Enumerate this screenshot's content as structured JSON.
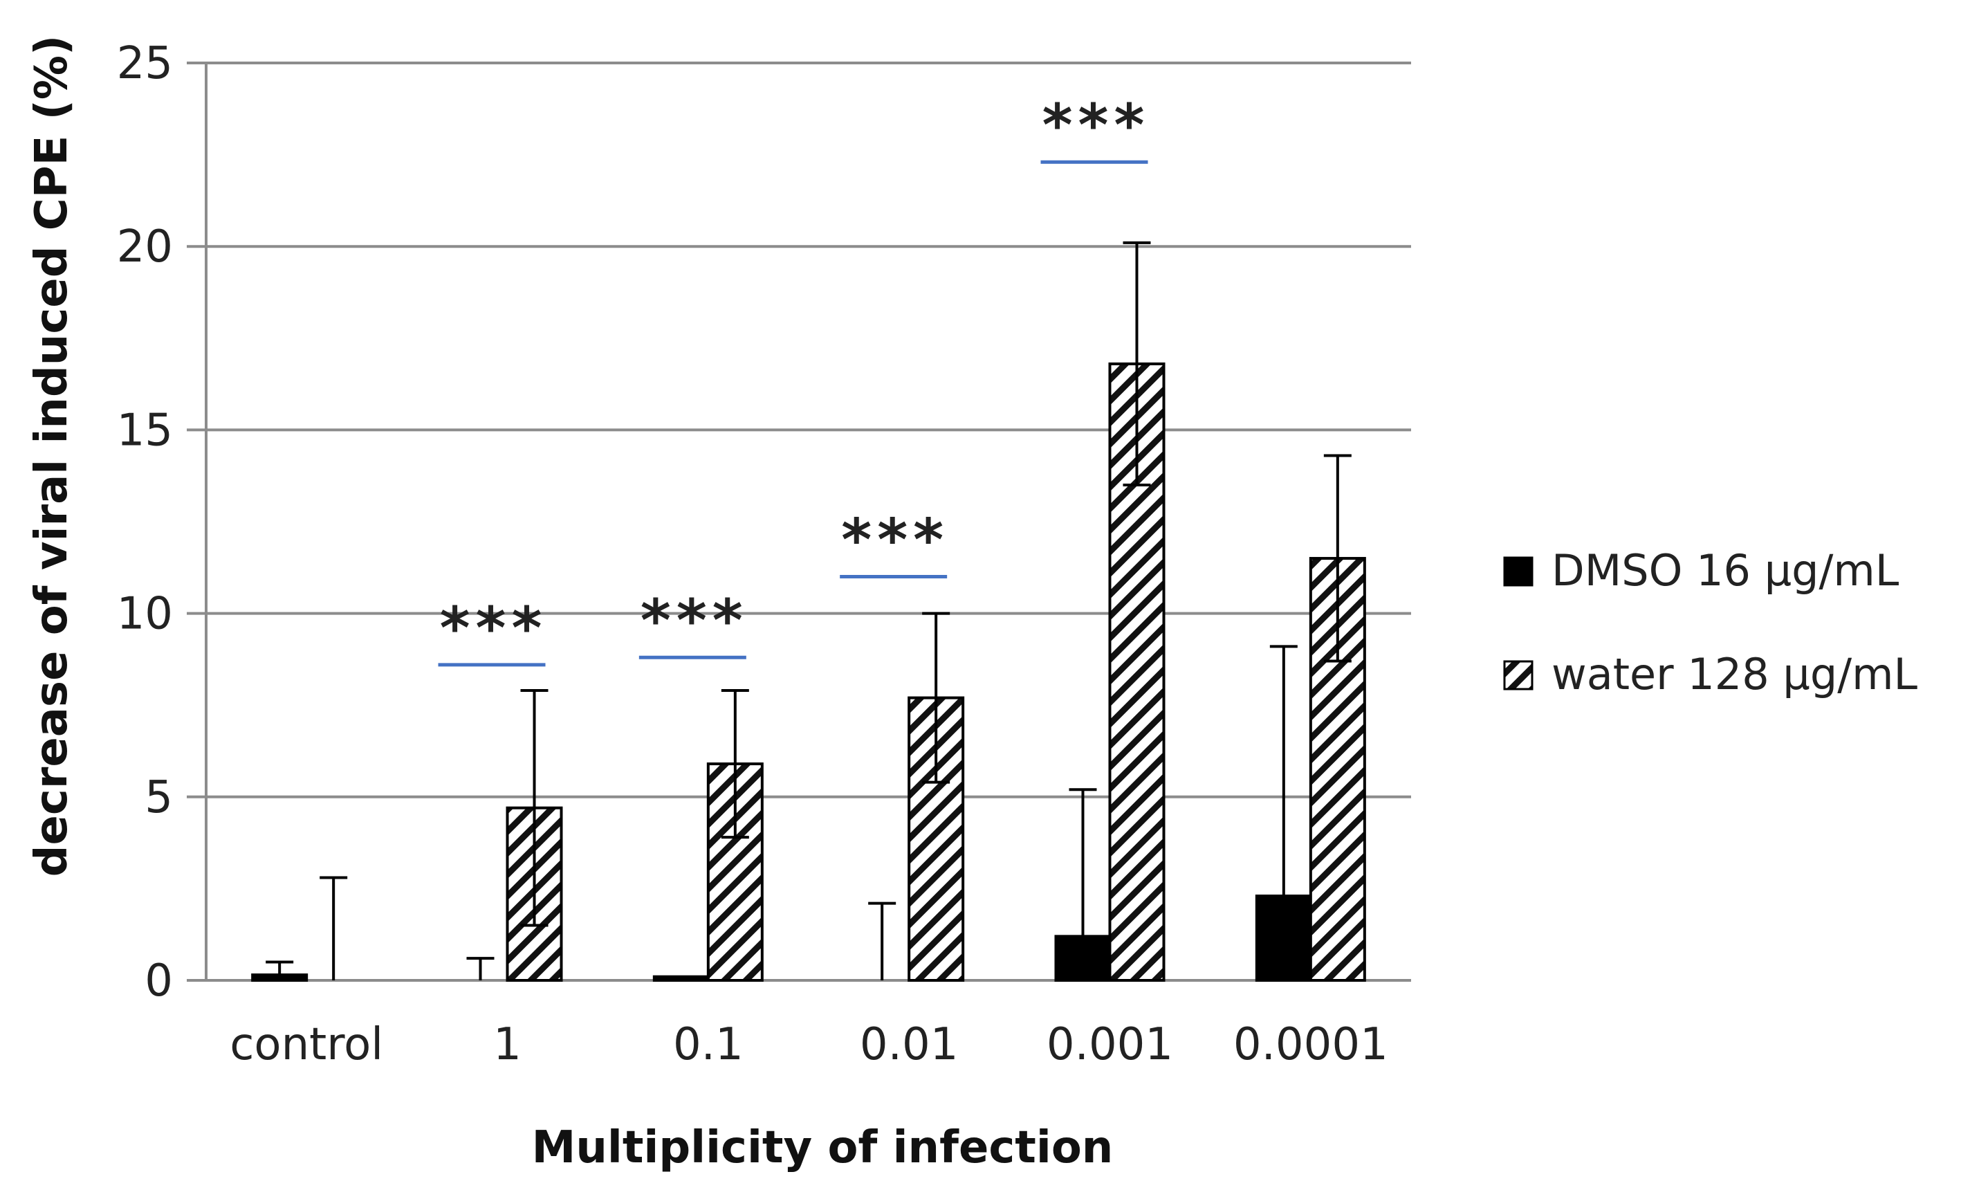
{
  "chart_data": {
    "type": "bar",
    "title": "",
    "xlabel": "Multiplicity of infection",
    "ylabel": "decrease of viral induced CPE (%)",
    "ylim": [
      0,
      25
    ],
    "yticks": [
      0,
      5,
      10,
      15,
      20,
      25
    ],
    "grid": true,
    "legend_position": "right",
    "categories": [
      "control",
      "1",
      "0.1",
      "0.01",
      "0.001",
      "0.0001"
    ],
    "series": [
      {
        "name": "DMSO 16 μg/mL",
        "fill": "solid",
        "color": "#000000",
        "values": [
          0.15,
          0.0,
          0.1,
          0.0,
          1.2,
          2.3
        ],
        "error": [
          0.35,
          0.6,
          0.0,
          2.1,
          4.0,
          6.8
        ]
      },
      {
        "name": "water 128 μg/mL",
        "fill": "hatched",
        "color": "#000000",
        "values": [
          0.0,
          4.7,
          5.9,
          7.7,
          16.8,
          11.5
        ],
        "error": [
          2.8,
          3.2,
          2.0,
          2.3,
          3.3,
          2.8
        ]
      }
    ],
    "significance": [
      {
        "category": "1",
        "label": "***",
        "line_value": 8.6,
        "line_color": "#4472C4"
      },
      {
        "category": "0.1",
        "label": "***",
        "line_value": 8.8,
        "line_color": "#4472C4"
      },
      {
        "category": "0.01",
        "label": "***",
        "line_value": 11.0,
        "line_color": "#4472C4"
      },
      {
        "category": "0.001",
        "label": "***",
        "line_value": 22.3,
        "line_color": "#4472C4"
      }
    ]
  }
}
